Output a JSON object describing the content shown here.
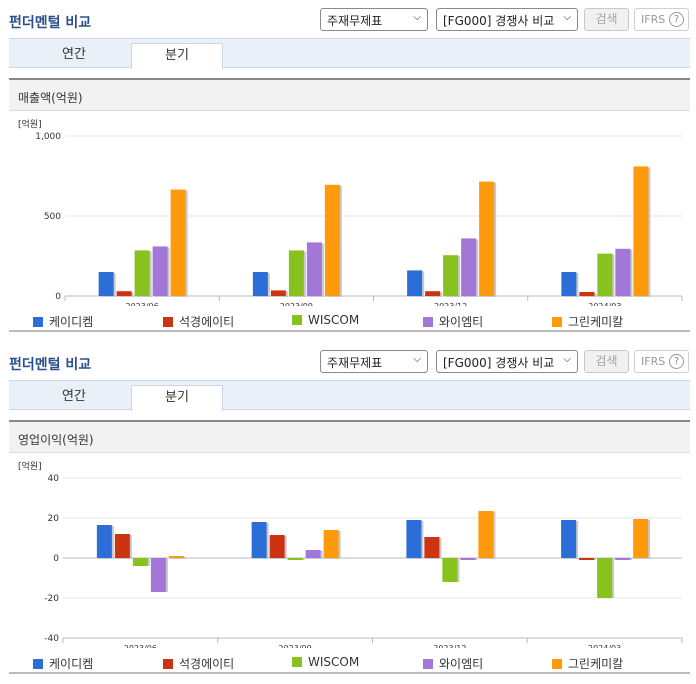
{
  "colors": {
    "kaydicom": "#2b6ed8",
    "seokyung": "#cc3311",
    "wiscom": "#88c21e",
    "wiiemty": "#a277d8",
    "greenchem": "#ff9a0d",
    "title": "#2b4f8b"
  },
  "sections": [
    {
      "title": "펀더멘털 비교",
      "select_statement": "주재무제표",
      "select_compare": "[FG000] 경쟁사 비교",
      "search_label": "검색",
      "ifrs_label": "IFRS",
      "help_icon": "?",
      "tabs": [
        "연간",
        "분기"
      ],
      "metric": "매출액(억원)",
      "unit": "[억원]"
    },
    {
      "title": "펀더멘털 비교",
      "select_statement": "주재무제표",
      "select_compare": "[FG000] 경쟁사 비교",
      "search_label": "검색",
      "ifrs_label": "IFRS",
      "help_icon": "?",
      "tabs": [
        "연간",
        "분기"
      ],
      "metric": "영업이익(억원)",
      "unit": "[억원]"
    }
  ],
  "chart_data": [
    {
      "type": "bar",
      "ylabel": "[억원]",
      "ylim": [
        0,
        1000
      ],
      "yticks": [
        0,
        500,
        1000
      ],
      "ytick_labels": [
        "0",
        "500",
        "1,000"
      ],
      "categories": [
        "2023/06",
        "2023/09",
        "2023/12",
        "2024/03"
      ],
      "series": [
        {
          "name": "케이디켐",
          "color": "#2b6ed8",
          "values": [
            150,
            150,
            160,
            150
          ]
        },
        {
          "name": "석경에이티",
          "color": "#cc3311",
          "values": [
            30,
            35,
            30,
            25
          ]
        },
        {
          "name": "WISCOM",
          "color": "#88c21e",
          "values": [
            285,
            285,
            255,
            265
          ]
        },
        {
          "name": "와이엠티",
          "color": "#a277d8",
          "values": [
            310,
            335,
            360,
            295
          ]
        },
        {
          "name": "그린케미칼",
          "color": "#ff9a0d",
          "values": [
            665,
            695,
            715,
            810
          ]
        }
      ],
      "legend": "bottom",
      "grid": true
    },
    {
      "type": "bar",
      "ylabel": "[억원]",
      "ylim": [
        -40,
        40
      ],
      "yticks": [
        -40,
        -20,
        0,
        20,
        40
      ],
      "ytick_labels": [
        "-40",
        "-20",
        "0",
        "20",
        "40"
      ],
      "categories": [
        "2023/06",
        "2023/09",
        "2023/12",
        "2024/03"
      ],
      "series": [
        {
          "name": "케이디켐",
          "color": "#2b6ed8",
          "values": [
            16.5,
            18,
            19,
            19
          ]
        },
        {
          "name": "석경에이티",
          "color": "#cc3311",
          "values": [
            12,
            11.5,
            10.5,
            -1
          ]
        },
        {
          "name": "WISCOM",
          "color": "#88c21e",
          "values": [
            -4,
            -1,
            -12,
            -20
          ]
        },
        {
          "name": "와이엠티",
          "color": "#a277d8",
          "values": [
            -17,
            4,
            -1,
            -1
          ]
        },
        {
          "name": "그린케미칼",
          "color": "#ff9a0d",
          "values": [
            1,
            14,
            23.5,
            19.5
          ]
        }
      ],
      "legend": "bottom",
      "grid": true
    }
  ]
}
